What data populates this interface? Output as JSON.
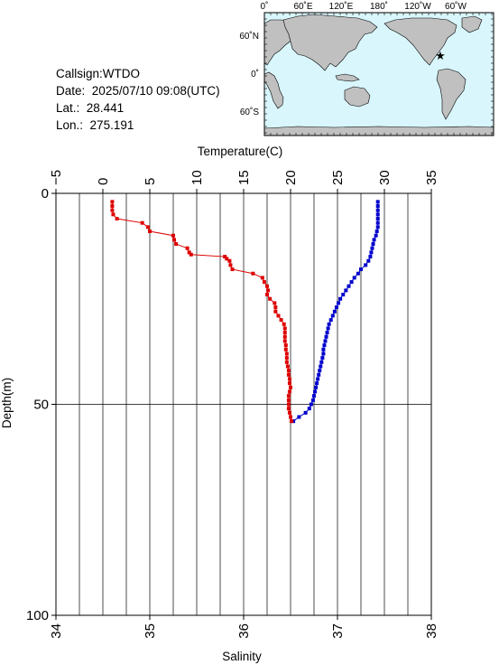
{
  "station": {
    "callsign_label": "Callsign:",
    "callsign": "WTDO",
    "date_label": "Date:",
    "date": "2025/07/10 09:08(UTC)",
    "lat_label": "Lat.:",
    "lat": "28.441",
    "lon_label": "Lon.:",
    "lon": "275.191"
  },
  "map": {
    "top_labels": [
      "0˚",
      "60˚E",
      "120˚E",
      "180˚",
      "120˚W",
      "60˚W"
    ],
    "left_labels": [
      "60˚N",
      "0˚",
      "60˚S"
    ],
    "ocean_color": "#d8f6fc",
    "land_color": "#c0c0c0",
    "marker_color": "#ff0000"
  },
  "chart_data": {
    "type": "scatter",
    "ylabel": "Depth(m)",
    "yticks": [
      "0",
      "50",
      "100"
    ],
    "ylim": [
      0,
      100
    ],
    "y_inverted": true,
    "top_axis": {
      "label": "Temperature(C)",
      "ticks": [
        "−5",
        "0",
        "5",
        "10",
        "15",
        "20",
        "25",
        "30",
        "35"
      ],
      "range": [
        -5,
        35
      ]
    },
    "bottom_axis": {
      "label": "Salinity",
      "ticks": [
        "34",
        "35",
        "36",
        "37",
        "38"
      ],
      "range": [
        34,
        38
      ]
    },
    "grid": true,
    "series": [
      {
        "color": "#0000cc",
        "axis": "top",
        "points": [
          [
            29.3,
            2
          ],
          [
            29.3,
            3
          ],
          [
            29.3,
            4
          ],
          [
            29.3,
            5
          ],
          [
            29.3,
            6
          ],
          [
            29.3,
            7
          ],
          [
            29.3,
            8
          ],
          [
            29.2,
            9
          ],
          [
            29.1,
            10
          ],
          [
            28.9,
            11
          ],
          [
            28.8,
            12
          ],
          [
            28.7,
            13
          ],
          [
            28.6,
            14
          ],
          [
            28.5,
            15
          ],
          [
            28.3,
            16
          ],
          [
            28.0,
            17
          ],
          [
            27.5,
            18
          ],
          [
            27.2,
            19
          ],
          [
            26.8,
            20
          ],
          [
            26.5,
            21
          ],
          [
            26.2,
            22
          ],
          [
            25.9,
            23
          ],
          [
            25.6,
            24
          ],
          [
            25.3,
            25
          ],
          [
            25.1,
            26
          ],
          [
            24.9,
            27
          ],
          [
            24.7,
            28
          ],
          [
            24.5,
            29
          ],
          [
            24.3,
            30
          ],
          [
            24.1,
            31
          ],
          [
            24.0,
            32
          ],
          [
            23.9,
            33
          ],
          [
            23.8,
            34
          ],
          [
            23.7,
            35
          ],
          [
            23.6,
            36
          ],
          [
            23.5,
            37
          ],
          [
            23.5,
            38
          ],
          [
            23.4,
            39
          ],
          [
            23.3,
            40
          ],
          [
            23.2,
            41
          ],
          [
            23.1,
            42
          ],
          [
            23.0,
            43
          ],
          [
            22.9,
            44
          ],
          [
            22.8,
            45
          ],
          [
            22.7,
            46
          ],
          [
            22.6,
            47
          ],
          [
            22.5,
            48
          ],
          [
            22.4,
            49
          ],
          [
            22.2,
            50
          ],
          [
            22.0,
            51
          ],
          [
            21.6,
            52
          ],
          [
            20.9,
            53
          ],
          [
            20.3,
            54
          ]
        ]
      },
      {
        "color": "#dd0000",
        "axis": "bottom",
        "points": [
          [
            34.6,
            2
          ],
          [
            34.6,
            3
          ],
          [
            34.6,
            4
          ],
          [
            34.61,
            5
          ],
          [
            34.65,
            6
          ],
          [
            34.92,
            7
          ],
          [
            34.98,
            8
          ],
          [
            35.0,
            9
          ],
          [
            35.25,
            10
          ],
          [
            35.26,
            11
          ],
          [
            35.28,
            12
          ],
          [
            35.4,
            13
          ],
          [
            35.42,
            14
          ],
          [
            35.44,
            14.5
          ],
          [
            35.8,
            15
          ],
          [
            35.82,
            15.5
          ],
          [
            35.85,
            16
          ],
          [
            35.86,
            17
          ],
          [
            35.88,
            18
          ],
          [
            36.1,
            19
          ],
          [
            36.2,
            20
          ],
          [
            36.22,
            21
          ],
          [
            36.25,
            22
          ],
          [
            36.26,
            23
          ],
          [
            36.25,
            24
          ],
          [
            36.28,
            25
          ],
          [
            36.33,
            26
          ],
          [
            36.34,
            27
          ],
          [
            36.34,
            28
          ],
          [
            36.37,
            29
          ],
          [
            36.4,
            30
          ],
          [
            36.43,
            31
          ],
          [
            36.44,
            32
          ],
          [
            36.44,
            33
          ],
          [
            36.44,
            34
          ],
          [
            36.44,
            35
          ],
          [
            36.45,
            36
          ],
          [
            36.45,
            37
          ],
          [
            36.46,
            38
          ],
          [
            36.46,
            39
          ],
          [
            36.46,
            40
          ],
          [
            36.47,
            41
          ],
          [
            36.48,
            42
          ],
          [
            36.48,
            43
          ],
          [
            36.49,
            44
          ],
          [
            36.49,
            45
          ],
          [
            36.5,
            46
          ],
          [
            36.49,
            47
          ],
          [
            36.48,
            48
          ],
          [
            36.48,
            49
          ],
          [
            36.48,
            50
          ],
          [
            36.48,
            51
          ],
          [
            36.49,
            52
          ],
          [
            36.5,
            53
          ],
          [
            36.51,
            54
          ]
        ]
      }
    ]
  }
}
